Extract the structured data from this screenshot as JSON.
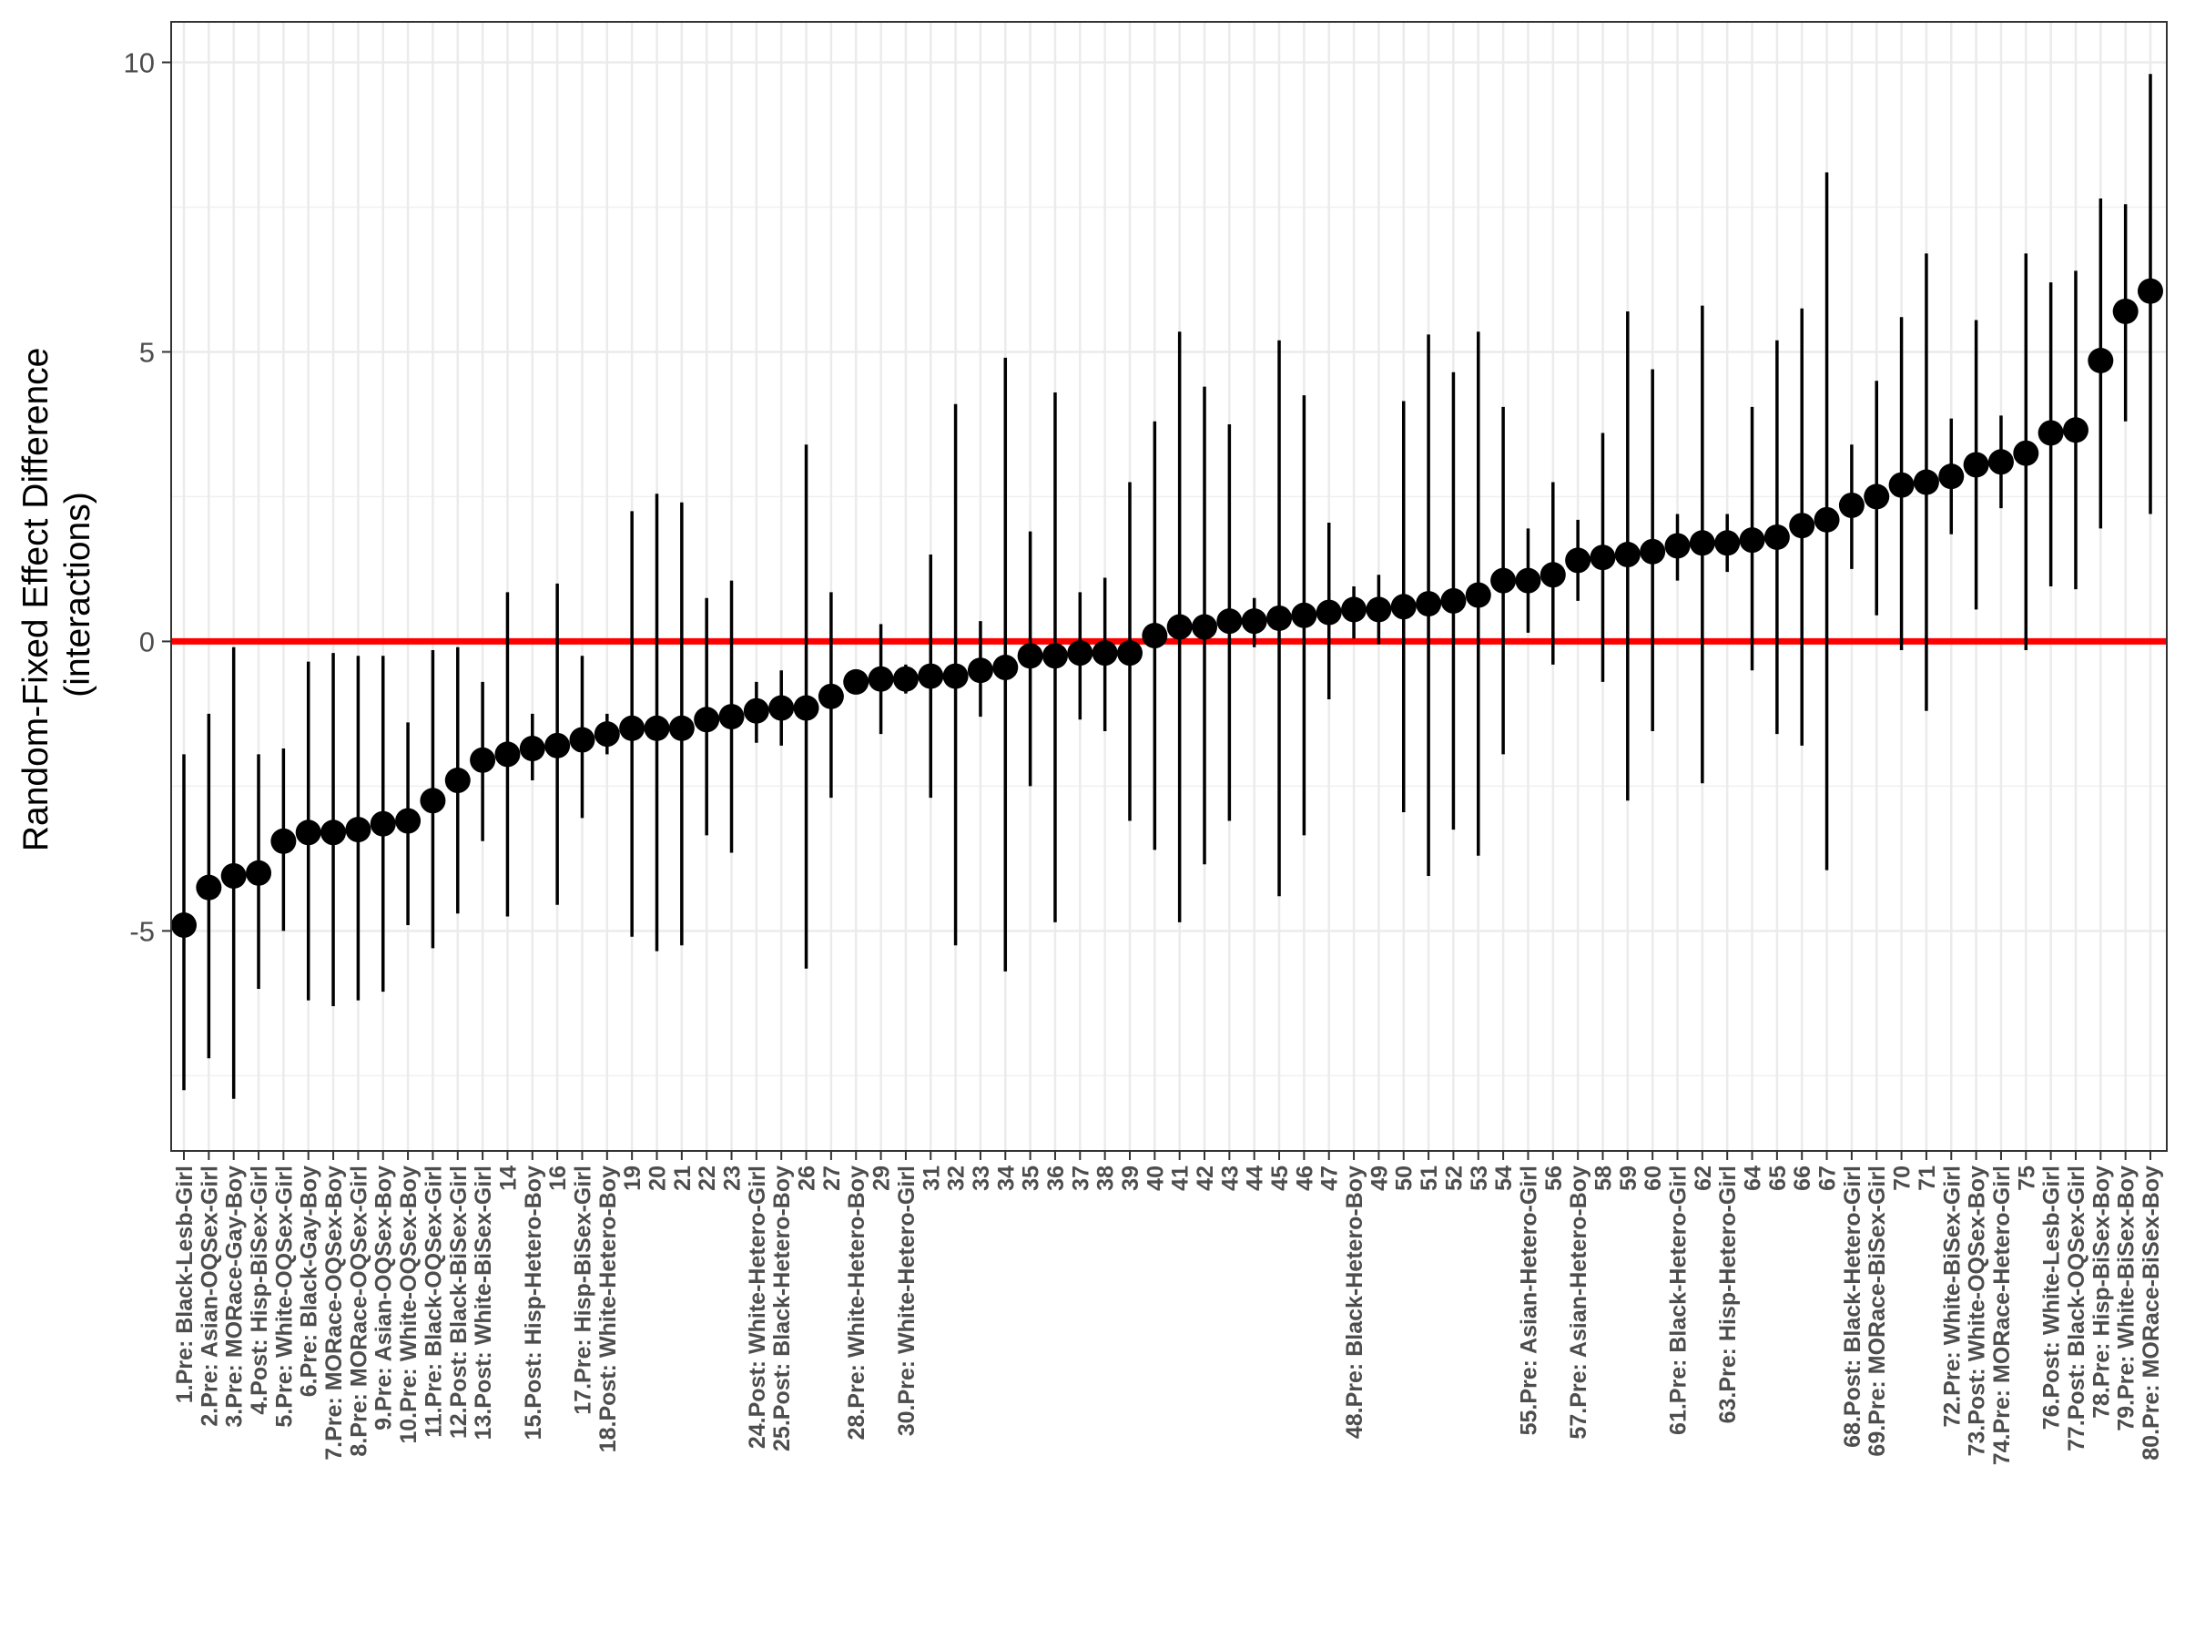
{
  "chart_data": {
    "type": "scatter",
    "geometry": "point-with-error-bars",
    "ylabel_lines": [
      "Random-Fixed Effect Difference",
      "(interactions)"
    ],
    "xlabel": "",
    "ylim": [
      -8.8,
      10.7
    ],
    "yticks": [
      -5,
      0,
      5,
      10
    ],
    "ytick_labels": [
      "-5",
      "0",
      "5",
      "10"
    ],
    "grid": true,
    "reference_line": {
      "y": 0,
      "color": "#ff0000"
    },
    "point_color": "#000000",
    "categories": [
      "1.Pre: Black-Lesb-Girl",
      "2.Pre: Asian-OQSex-Girl",
      "3.Pre: MORace-Gay-Boy",
      "4.Post: Hisp-BiSex-Girl",
      "5.Pre: White-OQSex-Girl",
      "6.Pre: Black-Gay-Boy",
      "7.Pre: MORace-OQSex-Boy",
      "8.Pre: MORace-OQSex-Girl",
      "9.Pre: Asian-OQSex-Boy",
      "10.Pre: White-OQSex-Boy",
      "11.Pre: Black-OQSex-Girl",
      "12.Post: Black-BiSex-Girl",
      "13.Post: White-BiSex-Girl",
      "14",
      "15.Post: Hisp-Hetero-Boy",
      "16",
      "17.Pre: Hisp-BiSex-Girl",
      "18.Post: White-Hetero-Boy",
      "19",
      "20",
      "21",
      "22",
      "23",
      "24.Post: White-Hetero-Girl",
      "25.Post: Black-Hetero-Boy",
      "26",
      "27",
      "28.Pre: White-Hetero-Boy",
      "29",
      "30.Pre: White-Hetero-Girl",
      "31",
      "32",
      "33",
      "34",
      "35",
      "36",
      "37",
      "38",
      "39",
      "40",
      "41",
      "42",
      "43",
      "44",
      "45",
      "46",
      "47",
      "48.Pre: Black-Hetero-Boy",
      "49",
      "50",
      "51",
      "52",
      "53",
      "54",
      "55.Pre: Asian-Hetero-Girl",
      "56",
      "57.Pre: Asian-Hetero-Boy",
      "58",
      "59",
      "60",
      "61.Pre: Black-Hetero-Girl",
      "62",
      "63.Pre: Hisp-Hetero-Girl",
      "64",
      "65",
      "66",
      "67",
      "68.Post: Black-Hetero-Girl",
      "69.Pre: MORace-BiSex-Girl",
      "70",
      "71",
      "72.Pre: White-BiSex-Girl",
      "73.Post: White-OQSex-Boy",
      "74.Pre: MORace-Hetero-Girl",
      "75",
      "76.Post: White-Lesb-Girl",
      "77.Post: Black-OQSex-Girl",
      "78.Pre: Hisp-BiSex-Boy",
      "79.Pre: White-BiSex-Boy",
      "80.Pre: MORace-BiSex-Boy"
    ],
    "estimates": [
      -4.9,
      -4.25,
      -4.05,
      -4.0,
      -3.45,
      -3.3,
      -3.3,
      -3.25,
      -3.15,
      -3.1,
      -2.75,
      -2.4,
      -2.05,
      -1.95,
      -1.85,
      -1.8,
      -1.7,
      -1.6,
      -1.5,
      -1.5,
      -1.5,
      -1.35,
      -1.3,
      -1.2,
      -1.15,
      -1.15,
      -0.95,
      -0.7,
      -0.65,
      -0.65,
      -0.6,
      -0.6,
      -0.5,
      -0.45,
      -0.25,
      -0.25,
      -0.2,
      -0.2,
      -0.2,
      0.1,
      0.25,
      0.25,
      0.35,
      0.35,
      0.4,
      0.45,
      0.5,
      0.55,
      0.55,
      0.6,
      0.65,
      0.7,
      0.8,
      1.05,
      1.05,
      1.15,
      1.4,
      1.45,
      1.5,
      1.55,
      1.65,
      1.7,
      1.7,
      1.75,
      1.8,
      2.0,
      2.1,
      2.35,
      2.5,
      2.7,
      2.75,
      2.85,
      3.05,
      3.1,
      3.25,
      3.6,
      3.65,
      4.85,
      5.7,
      6.05
    ],
    "lower": [
      -7.75,
      -7.2,
      -7.9,
      -6.0,
      -5.0,
      -6.2,
      -6.3,
      -6.2,
      -6.05,
      -4.9,
      -5.3,
      -4.7,
      -3.45,
      -4.75,
      -2.4,
      -4.55,
      -3.05,
      -1.95,
      -5.1,
      -5.35,
      -5.25,
      -3.35,
      -3.65,
      -1.75,
      -1.8,
      -5.65,
      -2.7,
      -0.75,
      -1.6,
      -0.9,
      -2.7,
      -5.25,
      -1.3,
      -5.7,
      -2.5,
      -4.85,
      -1.35,
      -1.55,
      -3.1,
      -3.6,
      -4.85,
      -3.85,
      -3.1,
      -0.1,
      -4.4,
      -3.35,
      -1.0,
      0.05,
      -0.05,
      -2.95,
      -4.05,
      -3.25,
      -3.7,
      -1.95,
      0.15,
      -0.4,
      0.7,
      -0.7,
      -2.75,
      -1.55,
      1.05,
      -2.45,
      1.2,
      -0.5,
      -1.6,
      -1.8,
      -3.95,
      1.25,
      0.45,
      -0.15,
      -1.2,
      1.85,
      0.55,
      2.3,
      -0.15,
      0.95,
      0.9,
      1.95,
      3.8,
      2.2
    ],
    "upper": [
      -1.95,
      -1.25,
      -0.1,
      -1.95,
      -1.85,
      -0.35,
      -0.2,
      -0.25,
      -0.25,
      -1.4,
      -0.15,
      -0.1,
      -0.7,
      0.85,
      -1.25,
      1.0,
      -0.25,
      -1.25,
      2.25,
      2.55,
      2.4,
      0.75,
      1.05,
      -0.7,
      -0.5,
      3.4,
      0.85,
      -0.65,
      0.3,
      -0.4,
      1.5,
      4.1,
      0.35,
      4.9,
      1.9,
      4.3,
      0.85,
      1.1,
      2.75,
      3.8,
      5.35,
      4.4,
      3.75,
      0.75,
      5.2,
      4.25,
      2.05,
      0.95,
      1.15,
      4.15,
      5.3,
      4.65,
      5.35,
      4.05,
      1.95,
      2.75,
      2.1,
      3.6,
      5.7,
      4.7,
      2.2,
      5.8,
      2.2,
      4.05,
      5.2,
      5.75,
      8.1,
      3.4,
      4.5,
      5.6,
      6.7,
      3.85,
      5.55,
      3.9,
      6.7,
      6.2,
      6.4,
      7.65,
      7.55,
      9.8
    ]
  }
}
